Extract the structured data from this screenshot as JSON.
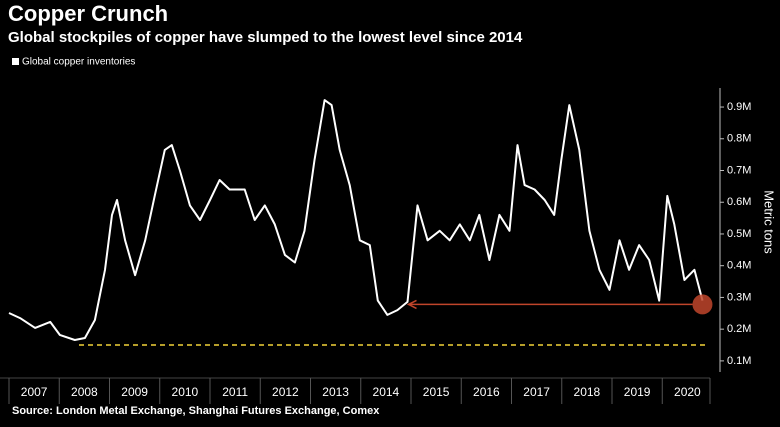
{
  "chart_data": {
    "type": "line",
    "title": "Copper Crunch",
    "subtitle": "Global stockpiles of copper have slumped to the lowest level since 2014",
    "source": "Source: London Metal Exchange, Shanghai Futures Exchange, Comex",
    "y_axis_label": "Metric tons",
    "legend_position": "top-left",
    "xlim": [
      2007,
      2020.95
    ],
    "xticks": [
      2007,
      2008,
      2009,
      2010,
      2011,
      2012,
      2013,
      2014,
      2015,
      2016,
      2017,
      2018,
      2019,
      2020
    ],
    "ylim": [
      65000,
      960000
    ],
    "yticks": [
      {
        "value": 100000,
        "label": "0.1M"
      },
      {
        "value": 200000,
        "label": "0.2M"
      },
      {
        "value": 300000,
        "label": "0.3M"
      },
      {
        "value": 400000,
        "label": "0.4M"
      },
      {
        "value": 500000,
        "label": "0.5M"
      },
      {
        "value": 600000,
        "label": "0.6M"
      },
      {
        "value": 700000,
        "label": "0.7M"
      },
      {
        "value": 800000,
        "label": "0.8M"
      },
      {
        "value": 900000,
        "label": "0.9M"
      }
    ],
    "reference_line": {
      "value": 150000,
      "color": "#f2d338"
    },
    "arrow": {
      "from_x": 2020.8,
      "to_x": 2014.95,
      "y": 278000,
      "color": "#c0452b"
    },
    "x": [
      2007.0,
      2007.22,
      2007.52,
      2007.82,
      2008.01,
      2008.31,
      2008.51,
      2008.71,
      2008.91,
      2009.05,
      2009.15,
      2009.31,
      2009.51,
      2009.71,
      2009.9,
      2010.1,
      2010.24,
      2010.4,
      2010.6,
      2010.8,
      2011.0,
      2011.19,
      2011.39,
      2011.69,
      2011.89,
      2012.09,
      2012.29,
      2012.49,
      2012.69,
      2012.88,
      2013.08,
      2013.28,
      2013.42,
      2013.58,
      2013.78,
      2013.98,
      2014.18,
      2014.34,
      2014.53,
      2014.73,
      2014.93,
      2015.13,
      2015.33,
      2015.57,
      2015.77,
      2015.97,
      2016.17,
      2016.36,
      2016.56,
      2016.76,
      2016.96,
      2017.12,
      2017.26,
      2017.46,
      2017.66,
      2017.85,
      2017.99,
      2018.15,
      2018.35,
      2018.55,
      2018.75,
      2018.95,
      2019.15,
      2019.34,
      2019.54,
      2019.74,
      2019.94,
      2020.1,
      2020.24,
      2020.44,
      2020.64,
      2020.8
    ],
    "series": [
      {
        "name": "Global copper inventories",
        "color": "#ffffff",
        "values": [
          251000,
          235000,
          204000,
          223000,
          182000,
          166000,
          172000,
          229000,
          387000,
          560000,
          607000,
          480000,
          370000,
          480000,
          620000,
          765000,
          780000,
          700000,
          590000,
          544000,
          607000,
          670000,
          640000,
          640000,
          544000,
          590000,
          530000,
          434000,
          410000,
          510000,
          733000,
          922000,
          906000,
          765000,
          654000,
          480000,
          465000,
          290000,
          245000,
          260000,
          286000,
          590000,
          480000,
          510000,
          480000,
          530000,
          480000,
          560000,
          418000,
          560000,
          510000,
          780000,
          654000,
          640000,
          607000,
          560000,
          733000,
          906000,
          765000,
          510000,
          387000,
          324000,
          480000,
          387000,
          465000,
          418000,
          290000,
          620000,
          530000,
          355000,
          387000,
          290000
        ]
      }
    ]
  }
}
